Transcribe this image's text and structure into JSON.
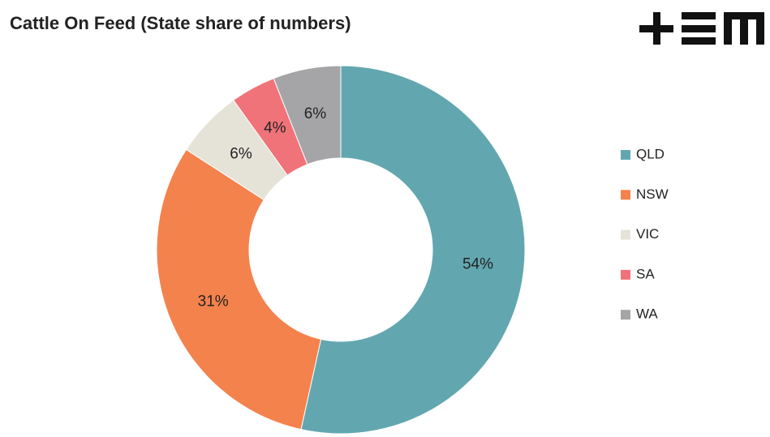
{
  "chart_data": {
    "type": "donut",
    "title": "Cattle On Feed (State share of numbers)",
    "categories": [
      "QLD",
      "NSW",
      "VIC",
      "SA",
      "WA"
    ],
    "values": [
      54,
      31,
      6,
      4,
      6
    ],
    "value_labels": [
      "54%",
      "31%",
      "6%",
      "4%",
      "6%"
    ],
    "colors": [
      "#62a7b0",
      "#f4824c",
      "#e5e3d8",
      "#f07379",
      "#a5a5a7"
    ],
    "legend": "right"
  }
}
